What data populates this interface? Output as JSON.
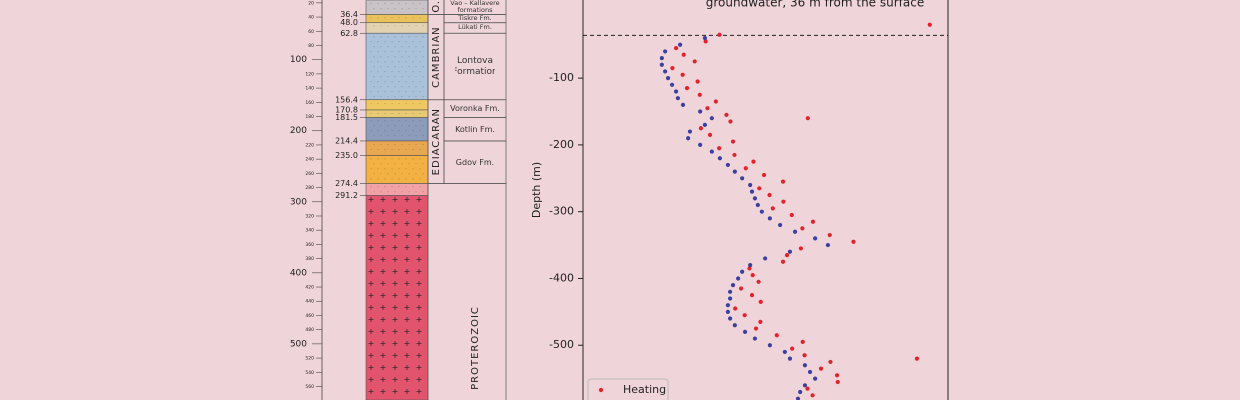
{
  "column": {
    "ylim": [
      16,
      579
    ],
    "ticks": [
      20,
      40,
      60,
      80,
      100,
      120,
      140,
      160,
      180,
      200,
      220,
      240,
      260,
      280,
      300,
      320,
      340,
      360,
      380,
      400,
      420,
      440,
      460,
      480,
      500,
      520,
      540,
      560
    ],
    "boundaries": [
      36.4,
      {
        "value": 48,
        "label": "48.0"
      },
      62.8,
      156.4,
      170.8,
      181.5,
      214.4,
      {
        "value": 235,
        "label": "235.0"
      },
      274.4,
      291.2
    ],
    "layer_colors": [
      "#c9c3c8",
      "#e9c25e",
      "#e3d2b2",
      "#a9c1d9",
      "#f0c862",
      "#e9ca74",
      "#8c9cba",
      "#e8a852",
      "#f2b142",
      "#f0a2a6",
      "#e2546e"
    ],
    "periods": [
      "O.",
      "CAMBRIAN",
      "EDIACARAN",
      "PROTEROZOIC"
    ],
    "formations": [
      "Vao – Kallavere formations",
      "Tiskre Fm.",
      "Lükati Fm.",
      "Lontova Formation",
      "Voronka Fm.",
      "Kotlin Fm.",
      "Gdov Fm."
    ]
  },
  "chart_data": {
    "type": "scatter",
    "ylabel": "Depth (m)",
    "annotation": "groundwater, 36 m from the surface",
    "hline": -36,
    "xlim": [
      0,
      100
    ],
    "ylim": [
      -582,
      17
    ],
    "yticks": [
      -100,
      -200,
      -300,
      -400,
      -500
    ],
    "legend": "lower left",
    "series": [
      {
        "name": "Heating",
        "color": "#e3222c",
        "x": [
          37.4,
          33.6,
          25.5,
          27.6,
          30.6,
          24.5,
          27.3,
          31.4,
          28.5,
          32.0,
          36.4,
          34.1,
          39.3,
          40.4,
          32.3,
          34.8,
          41.1,
          37.3,
          41.5,
          46.7,
          44.6,
          49.6,
          54.8,
          48.3,
          51.1,
          54.9,
          52.0,
          57.2,
          63.0,
          60.1,
          67.6,
          74.1,
          59.7,
          55.9,
          54.8,
          45.6,
          46.5,
          48.1,
          43.3,
          46.3,
          48.7,
          41.7,
          44.3,
          48.6,
          47.4,
          53.1,
          60.2,
          57.3,
          60.7,
          67.8,
          65.2,
          69.6,
          69.8,
          61.5,
          62.9,
          61.6,
          91.5,
          95.0
        ],
        "y": [
          -35,
          -45,
          -55,
          -65,
          -75,
          -85,
          -95,
          -105,
          -115,
          -125,
          -135,
          -145,
          -155,
          -165,
          -175,
          -185,
          -195,
          -205,
          -215,
          -225,
          -235,
          -245,
          -255,
          -265,
          -275,
          -285,
          -295,
          -305,
          -315,
          -325,
          -335,
          -345,
          -355,
          -365,
          -375,
          -385,
          -395,
          -405,
          -415,
          -425,
          -435,
          -445,
          -455,
          -465,
          -475,
          -485,
          -495,
          -505,
          -515,
          -525,
          -535,
          -545,
          -555,
          -565,
          -575,
          -160,
          -520,
          -20
        ]
      },
      {
        "color": "#3b3f9f",
        "x": [
          33.4,
          26.6,
          22.5,
          21.6,
          21.6,
          22.5,
          23.3,
          24.4,
          25.5,
          26.0,
          27.4,
          32.1,
          35.3,
          33.4,
          29.3,
          28.8,
          32.1,
          35.3,
          37.5,
          39.7,
          41.6,
          43.6,
          45.8,
          46.3,
          47.1,
          47.9,
          49.0,
          51.2,
          54.0,
          58.1,
          63.6,
          67.1,
          56.7,
          49.9,
          45.8,
          43.6,
          42.5,
          41.1,
          40.3,
          40.3,
          39.7,
          39.7,
          40.3,
          41.6,
          44.4,
          47.1,
          51.2,
          55.3,
          56.7,
          60.8,
          62.2,
          63.6,
          60.8,
          59.5,
          58.9
        ],
        "y": [
          -40,
          -50,
          -60,
          -70,
          -80,
          -90,
          -100,
          -110,
          -120,
          -130,
          -140,
          -150,
          -160,
          -170,
          -180,
          -190,
          -200,
          -210,
          -220,
          -230,
          -240,
          -250,
          -260,
          -270,
          -280,
          -290,
          -300,
          -310,
          -320,
          -330,
          -340,
          -350,
          -360,
          -370,
          -380,
          -390,
          -400,
          -410,
          -420,
          -430,
          -440,
          -450,
          -460,
          -470,
          -480,
          -490,
          -500,
          -510,
          -520,
          -530,
          -540,
          -550,
          -560,
          -570,
          -580
        ]
      }
    ]
  }
}
